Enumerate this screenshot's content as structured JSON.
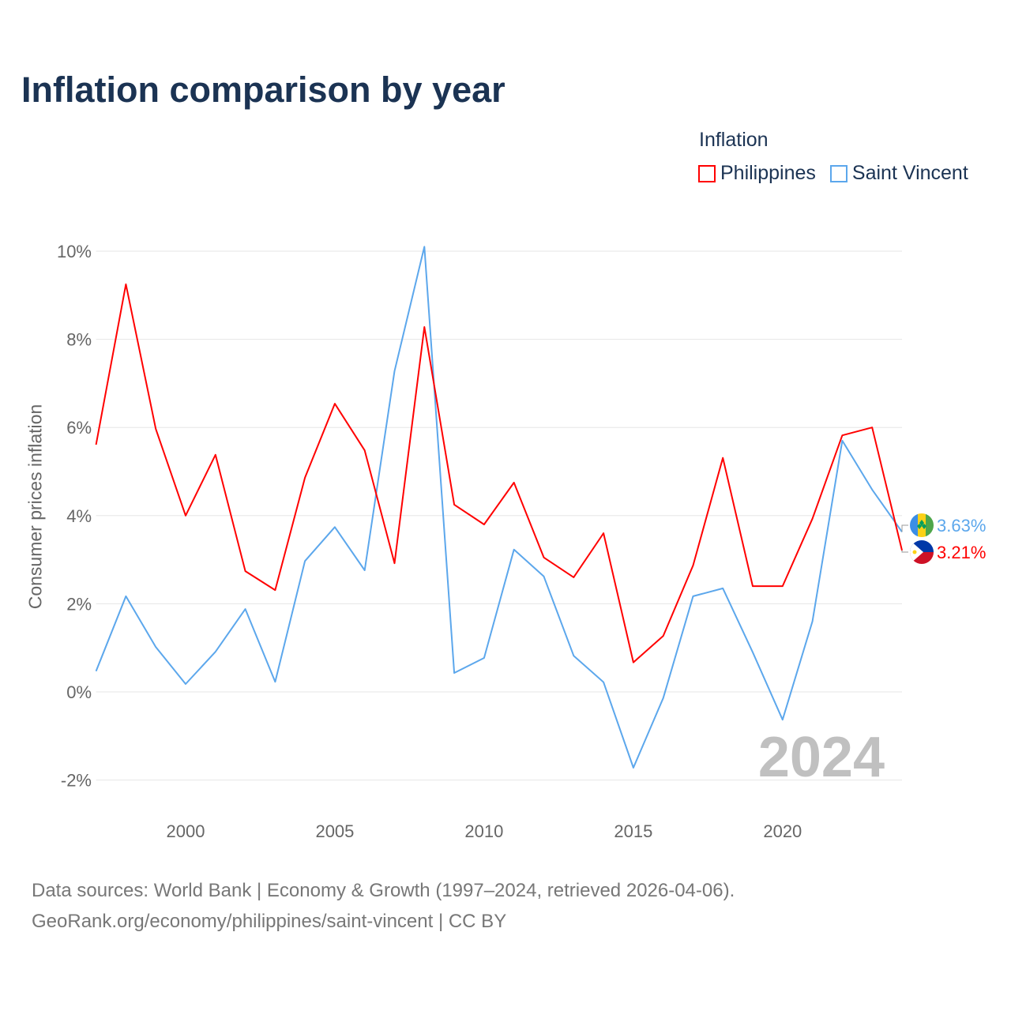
{
  "title": "Inflation comparison by year",
  "legend": {
    "title": "Inflation",
    "items": [
      {
        "label": "Philippines",
        "color": "#ff0000"
      },
      {
        "label": "Saint Vincent",
        "color": "#5ca7ec"
      }
    ]
  },
  "source": {
    "line1": "Data sources: World Bank | Economy & Growth (1997–2024, retrieved 2026-04-06).",
    "line2": "GeoRank.org/economy/philippines/saint-vincent | CC BY"
  },
  "chart_data": {
    "type": "line",
    "title": "Inflation comparison by year",
    "xlabel": "",
    "ylabel": "Consumer prices inflation",
    "x": [
      1997,
      1998,
      1999,
      2000,
      2001,
      2002,
      2003,
      2004,
      2005,
      2006,
      2007,
      2008,
      2009,
      2010,
      2011,
      2012,
      2013,
      2014,
      2015,
      2016,
      2017,
      2018,
      2019,
      2020,
      2021,
      2022,
      2023,
      2024
    ],
    "xlim": [
      1997,
      2024
    ],
    "ylim": [
      -2.6,
      10.5
    ],
    "x_ticks": [
      2000,
      2005,
      2010,
      2015,
      2020
    ],
    "y_ticks": [
      {
        "v": -2,
        "label": "-2%"
      },
      {
        "v": 0,
        "label": "0%"
      },
      {
        "v": 2,
        "label": "2%"
      },
      {
        "v": 4,
        "label": "4%"
      },
      {
        "v": 6,
        "label": "6%"
      },
      {
        "v": 8,
        "label": "8%"
      },
      {
        "v": 10,
        "label": "10%"
      }
    ],
    "grid": true,
    "legend_position": "top-right",
    "year_annotation": "2024",
    "series": [
      {
        "name": "Philippines",
        "color": "#ff0000",
        "end_label": "3.21%",
        "values": [
          5.61,
          9.25,
          5.97,
          4.0,
          5.38,
          2.74,
          2.31,
          4.86,
          6.54,
          5.48,
          2.92,
          8.28,
          4.25,
          3.8,
          4.75,
          3.05,
          2.6,
          3.6,
          0.67,
          1.27,
          2.87,
          5.31,
          2.4,
          2.4,
          3.93,
          5.82,
          6.0,
          3.21
        ]
      },
      {
        "name": "Saint Vincent",
        "color": "#5ca7ec",
        "end_label": "3.63%",
        "values": [
          0.47,
          2.17,
          1.02,
          0.18,
          0.91,
          1.88,
          0.23,
          2.97,
          3.74,
          2.76,
          7.28,
          10.1,
          0.43,
          0.77,
          3.23,
          2.62,
          0.82,
          0.22,
          -1.72,
          -0.14,
          2.17,
          2.35,
          0.9,
          -0.63,
          1.6,
          5.7,
          4.59,
          3.63
        ]
      }
    ]
  }
}
